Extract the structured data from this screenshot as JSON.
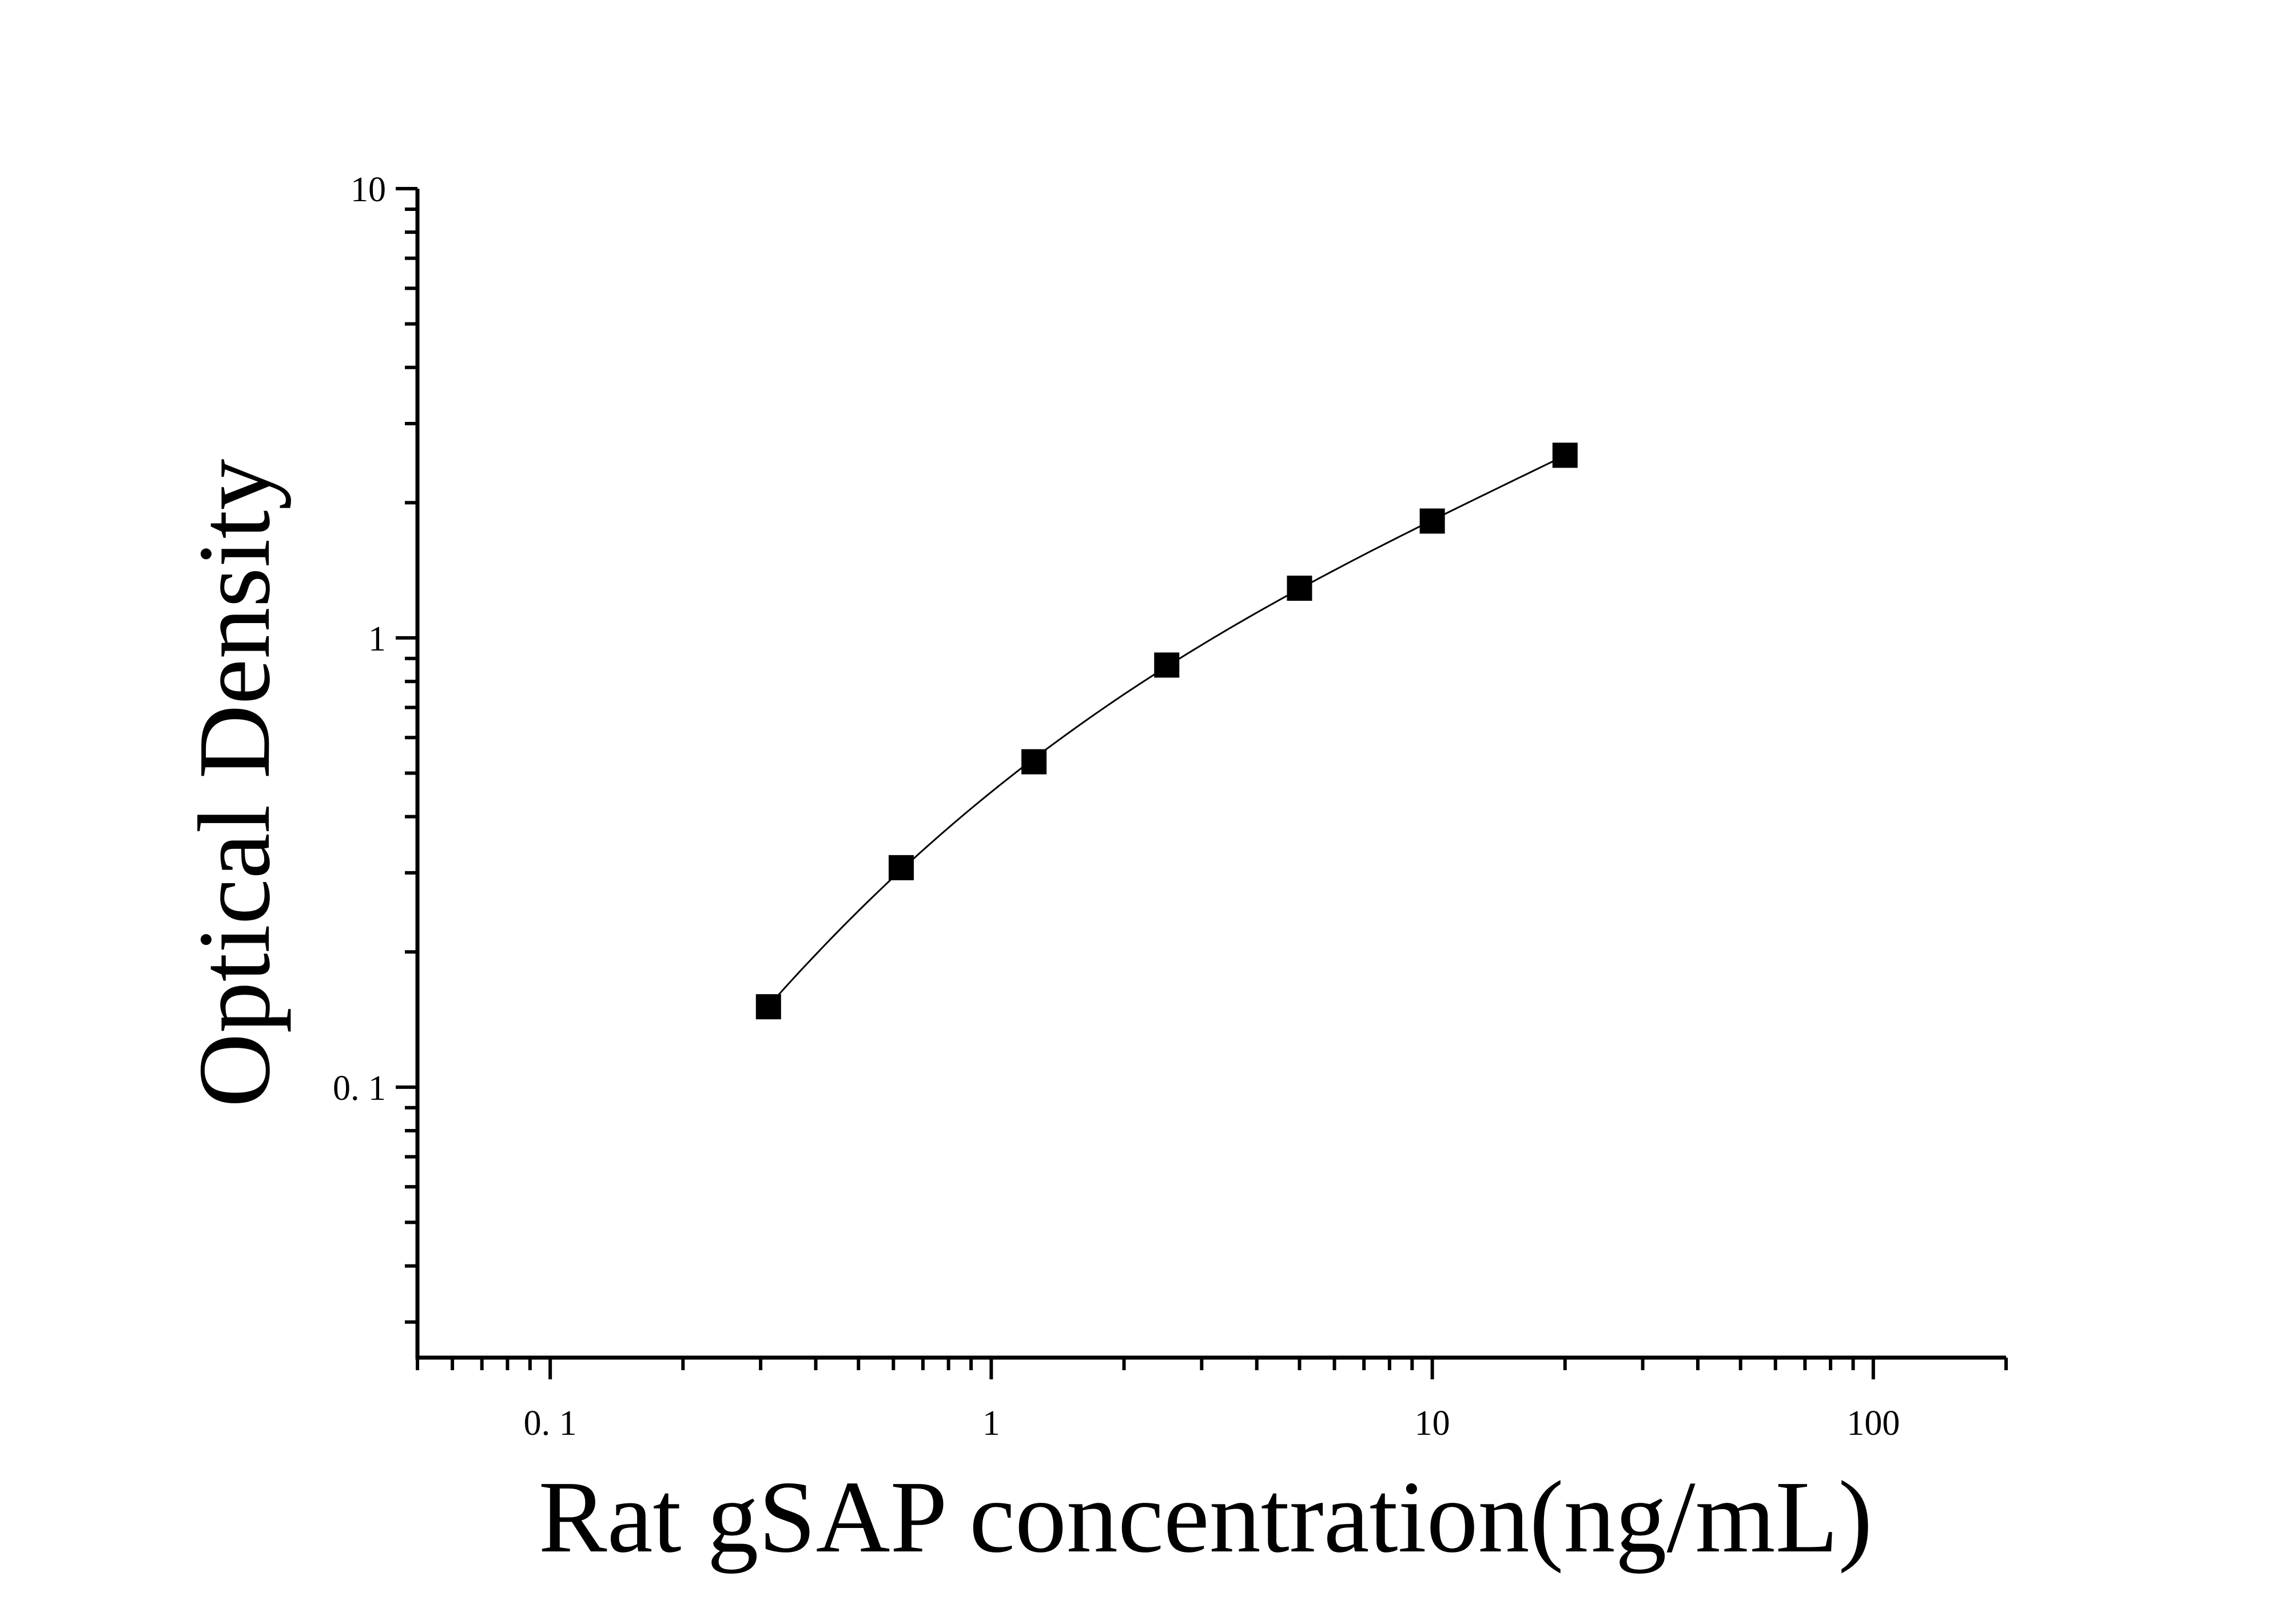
{
  "chart_data": {
    "type": "scatter",
    "title": "",
    "xlabel": "Rat gSAP concentration(ng/mL)",
    "ylabel": "Optical Density",
    "x_scale": "log",
    "y_scale": "log",
    "xlim": [
      0.05,
      200
    ],
    "ylim": [
      0.025,
      10
    ],
    "x_ticks": [
      {
        "value": 0.1,
        "label": "0. 1"
      },
      {
        "value": 1,
        "label": "1"
      },
      {
        "value": 10,
        "label": "10"
      },
      {
        "value": 100,
        "label": "100"
      }
    ],
    "y_ticks": [
      {
        "value": 0.1,
        "label": "0. 1"
      },
      {
        "value": 1,
        "label": "1"
      },
      {
        "value": 10,
        "label": "10"
      }
    ],
    "grid": false,
    "legend": "none",
    "series": [
      {
        "marker": "square",
        "color": "#000000",
        "fit_line": true,
        "x": [
          0.3125,
          0.625,
          1.25,
          2.5,
          5,
          10,
          20
        ],
        "y": [
          0.151,
          0.308,
          0.53,
          0.87,
          1.29,
          1.82,
          2.55
        ]
      }
    ]
  }
}
